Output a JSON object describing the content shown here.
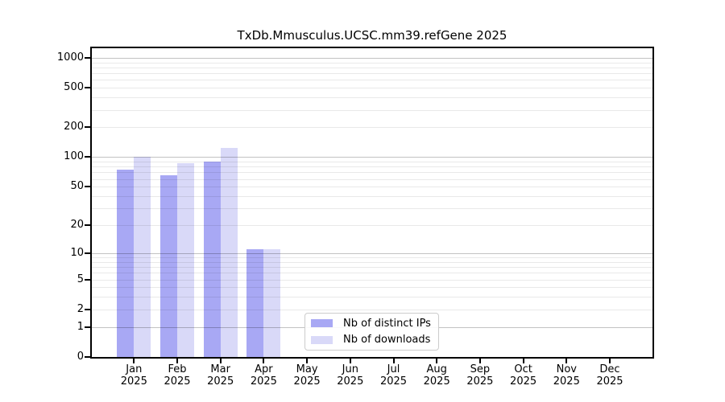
{
  "chart_data": {
    "type": "bar",
    "title": "TxDb.Mmusculus.UCSC.mm39.refGene 2025",
    "categories": [
      "Jan",
      "Feb",
      "Mar",
      "Apr",
      "May",
      "Jun",
      "Jul",
      "Aug",
      "Sep",
      "Oct",
      "Nov",
      "Dec"
    ],
    "x_year_label": "2025",
    "series": [
      {
        "name": "Nb of distinct IPs",
        "color": "#a8a8f4",
        "values": [
          75,
          66,
          90,
          11,
          0,
          0,
          0,
          0,
          0,
          0,
          0,
          0
        ]
      },
      {
        "name": "Nb of downloads",
        "color": "#d9d9f8",
        "values": [
          100,
          87,
          125,
          11,
          0,
          0,
          0,
          0,
          0,
          0,
          0,
          0
        ]
      }
    ],
    "xlabel": "",
    "ylabel": "",
    "y_ticks": [
      0,
      1,
      2,
      5,
      10,
      20,
      50,
      100,
      200,
      500,
      1000
    ],
    "y_major_gridlines": [
      1,
      10,
      100,
      1000
    ],
    "y_minor_gridlines": [
      2,
      3,
      4,
      5,
      6,
      7,
      8,
      9,
      20,
      30,
      40,
      50,
      60,
      70,
      80,
      90,
      200,
      300,
      400,
      500,
      600,
      700,
      800,
      900
    ],
    "scale": "log1p",
    "ylim": [
      0,
      1249
    ],
    "grid": true,
    "legend_position": "inside lower center"
  }
}
